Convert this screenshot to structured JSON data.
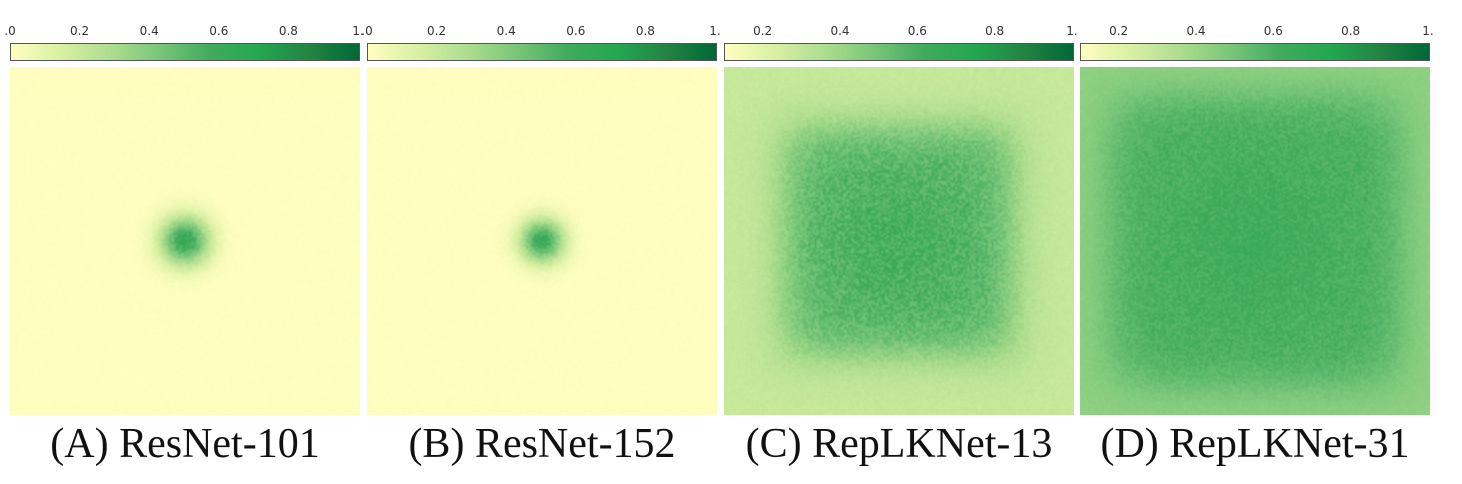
{
  "colormap": [
    "#ffffbf",
    "#d9f0a3",
    "#addd8e",
    "#78c679",
    "#41ab5d",
    "#23a84f",
    "#238443",
    "#006837"
  ],
  "chart_data": [
    {
      "type": "heatmap",
      "caption": "(A) ResNet-101",
      "colorbar_ticks": [
        ".0",
        "0.2",
        "0.4",
        "0.6",
        "0.8",
        "1."
      ],
      "colorbar_range": [
        0,
        1
      ],
      "profile": {
        "shape": "blob",
        "background": 0.0,
        "peak": 0.62,
        "spread": 0.05,
        "noise": 0.05
      }
    },
    {
      "type": "heatmap",
      "caption": "(B) ResNet-152",
      "colorbar_ticks": [
        ".0",
        "0.2",
        "0.4",
        "0.6",
        "0.8",
        "1."
      ],
      "colorbar_range": [
        0,
        1
      ],
      "profile": {
        "shape": "blob",
        "background": 0.0,
        "peak": 0.6,
        "spread": 0.045,
        "noise": 0.05
      }
    },
    {
      "type": "heatmap",
      "caption": "(C) RepLKNet-13",
      "colorbar_ticks": [
        "0.2",
        "0.4",
        "0.6",
        "0.8",
        "1."
      ],
      "colorbar_range": [
        0.1,
        1
      ],
      "profile": {
        "shape": "square",
        "background": 0.2,
        "peak": 0.56,
        "spread": 0.33,
        "noise": 0.06
      }
    },
    {
      "type": "heatmap",
      "caption": "(D) RepLKNet-31",
      "colorbar_ticks": [
        "0.2",
        "0.4",
        "0.6",
        "0.8",
        "1."
      ],
      "colorbar_range": [
        0.1,
        1
      ],
      "profile": {
        "shape": "square",
        "background": 0.36,
        "peak": 0.58,
        "spread": 0.42,
        "noise": 0.04
      }
    }
  ]
}
